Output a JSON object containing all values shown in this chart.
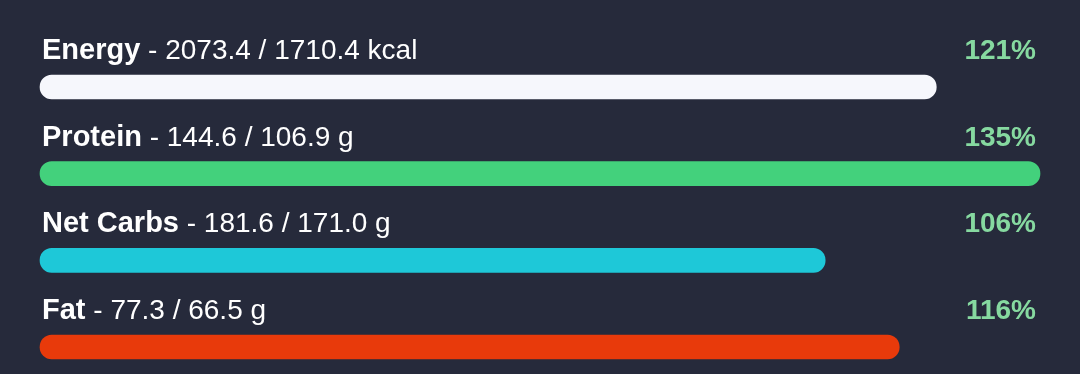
{
  "chart_data": {
    "type": "bar",
    "orientation": "horizontal",
    "categories": [
      "Energy - 2073.4 / 1710.4 kcal",
      "Protein - 144.6 / 106.9 g",
      "Net Carbs - 181.6 / 171.0 g",
      "Fat - 77.3 / 66.5 g"
    ],
    "values": [
      121,
      135,
      106,
      116
    ],
    "colors": [
      "#f6f7fc",
      "#43d17c",
      "#1ec8d8",
      "#e83a0b"
    ],
    "value_labels": [
      "121%",
      "135%",
      "106%",
      "116%"
    ]
  }
}
